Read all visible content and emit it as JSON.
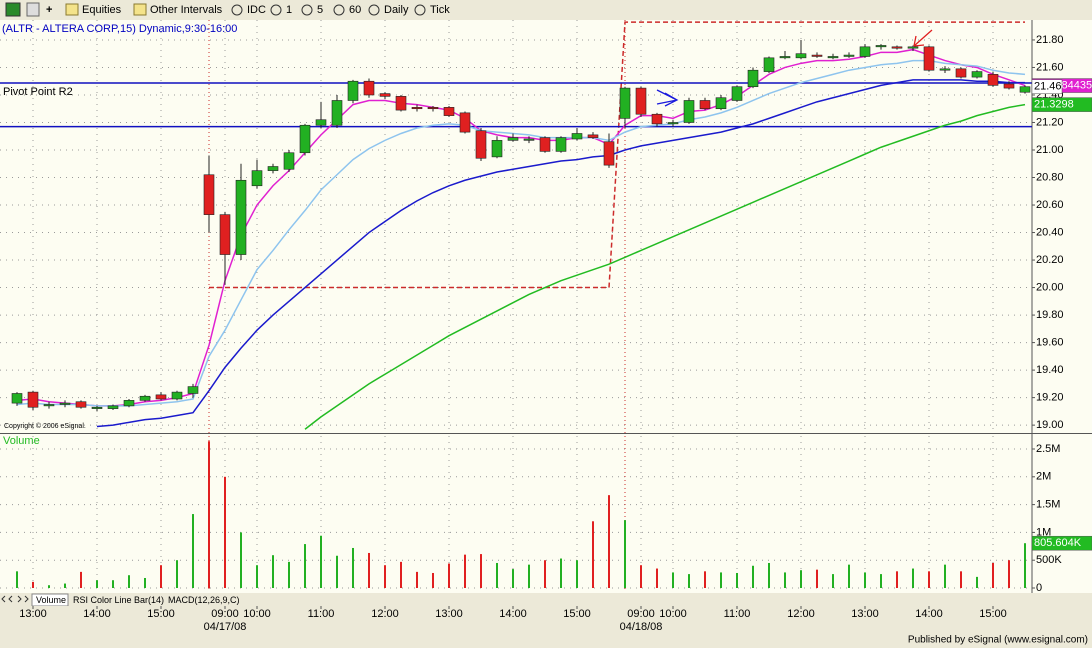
{
  "toolbar": [
    "Equities",
    "Other Intervals",
    "IDC",
    "1",
    "5",
    "60",
    "Daily",
    "Tick"
  ],
  "tabs": [
    "Volume",
    "RSI Color Line Bar(14)",
    "MACD(12,26,9,C)"
  ],
  "footer": "Published by eSignal (www.esignal.com)",
  "chart_data": {
    "type": "candlestick",
    "title": "(ALTR - ALTERA CORP,15) Dynamic,9:30-16:00",
    "copyright": "Copyright © 2006 eSignal.",
    "categories": [
      null,
      "13:00",
      null,
      null,
      null,
      "14:00",
      null,
      null,
      null,
      "15:00",
      null,
      null,
      null,
      "09:00",
      null,
      "10:00",
      null,
      null,
      null,
      "11:00",
      null,
      null,
      null,
      "12:00",
      null,
      null,
      null,
      "13:00",
      null,
      null,
      null,
      "14:00",
      null,
      null,
      null,
      "15:00",
      null,
      null,
      null,
      "09:00",
      null,
      "10:00",
      null,
      null,
      null,
      "11:00",
      null,
      null,
      null,
      "12:00",
      null,
      null,
      null,
      "13:00",
      null,
      null,
      null,
      "14:00",
      null,
      null,
      null,
      "15:00",
      null,
      null
    ],
    "dates": [
      null,
      null,
      null,
      null,
      null,
      null,
      null,
      null,
      null,
      null,
      null,
      null,
      null,
      "04/17/08",
      null,
      null,
      null,
      null,
      null,
      null,
      null,
      null,
      null,
      null,
      null,
      null,
      null,
      null,
      null,
      null,
      null,
      null,
      null,
      null,
      null,
      null,
      null,
      null,
      null,
      "04/18/08",
      null,
      null,
      null,
      null,
      null,
      null,
      null,
      null,
      null,
      null,
      null,
      null,
      null,
      null,
      null,
      null,
      null,
      null,
      null,
      null,
      null,
      null,
      null,
      null
    ],
    "open": [
      19.16,
      19.24,
      19.14,
      19.15,
      19.17,
      19.12,
      19.12,
      19.14,
      19.18,
      19.22,
      19.19,
      19.23,
      20.82,
      20.53,
      20.24,
      20.74,
      20.85,
      20.86,
      20.98,
      21.18,
      21.18,
      21.36,
      21.5,
      21.41,
      21.39,
      21.31,
      21.31,
      21.31,
      21.27,
      21.14,
      20.95,
      21.07,
      21.07,
      21.09,
      20.99,
      21.08,
      21.11,
      21.06,
      21.23,
      21.45,
      21.26,
      21.19,
      21.2,
      21.36,
      21.3,
      21.36,
      21.46,
      21.57,
      21.67,
      21.67,
      21.69,
      21.67,
      21.68,
      21.68,
      21.75,
      21.75,
      21.74,
      21.75,
      21.58,
      21.59,
      21.53,
      21.55,
      21.48,
      21.42
    ],
    "high": [
      19.24,
      19.25,
      19.17,
      19.18,
      19.18,
      19.14,
      19.15,
      19.19,
      19.22,
      19.24,
      19.25,
      19.3,
      20.96,
      20.55,
      20.9,
      20.93,
      20.9,
      21.0,
      21.19,
      21.35,
      21.4,
      21.51,
      21.52,
      21.42,
      21.4,
      21.33,
      21.32,
      21.32,
      21.28,
      21.16,
      21.1,
      21.12,
      21.1,
      21.1,
      21.1,
      21.16,
      21.13,
      21.12,
      21.46,
      21.46,
      21.27,
      21.22,
      21.38,
      21.38,
      21.4,
      21.47,
      21.6,
      21.68,
      21.72,
      21.8,
      21.71,
      21.7,
      21.71,
      21.77,
      21.77,
      21.76,
      21.76,
      21.76,
      21.61,
      21.6,
      21.58,
      21.57,
      21.5,
      21.47
    ],
    "low": [
      19.14,
      19.11,
      19.12,
      19.13,
      19.12,
      19.1,
      19.11,
      19.13,
      19.17,
      19.18,
      19.18,
      19.2,
      20.4,
      20.02,
      20.2,
      20.72,
      20.83,
      20.84,
      20.96,
      21.16,
      21.16,
      21.34,
      21.38,
      21.37,
      21.28,
      21.28,
      21.28,
      21.24,
      21.12,
      20.92,
      20.94,
      21.06,
      21.05,
      20.98,
      20.98,
      21.07,
      21.08,
      20.87,
      21.16,
      21.24,
      21.17,
      21.17,
      21.19,
      21.29,
      21.29,
      21.35,
      21.45,
      21.56,
      21.66,
      21.66,
      21.67,
      21.66,
      21.67,
      21.67,
      21.73,
      21.73,
      21.72,
      21.57,
      21.56,
      21.52,
      21.52,
      21.46,
      21.44,
      21.41
    ],
    "close": [
      19.23,
      19.13,
      19.15,
      19.16,
      19.13,
      19.13,
      19.14,
      19.18,
      19.21,
      19.19,
      19.24,
      19.28,
      20.53,
      20.24,
      20.78,
      20.85,
      20.88,
      20.98,
      21.18,
      21.22,
      21.36,
      21.5,
      21.4,
      21.39,
      21.29,
      21.3,
      21.3,
      21.25,
      21.13,
      20.94,
      21.07,
      21.09,
      21.08,
      20.99,
      21.09,
      21.12,
      21.09,
      20.89,
      21.45,
      21.26,
      21.19,
      21.2,
      21.36,
      21.3,
      21.38,
      21.46,
      21.58,
      21.67,
      21.68,
      21.7,
      21.68,
      21.68,
      21.69,
      21.75,
      21.76,
      21.74,
      21.75,
      21.58,
      21.59,
      21.53,
      21.57,
      21.47,
      21.45,
      21.46
    ],
    "last_close_label": "21.46",
    "up_color": "#22b022",
    "down_color": "#e02020",
    "ylim": [
      18.95,
      21.945
    ],
    "yticks": [
      {
        "value": 19.0,
        "label": "19.00"
      },
      {
        "value": 19.2,
        "label": "19.20"
      },
      {
        "value": 19.4,
        "label": "19.40"
      },
      {
        "value": 19.6,
        "label": "19.60"
      },
      {
        "value": 19.8,
        "label": "19.80"
      },
      {
        "value": 20.0,
        "label": "20.00"
      },
      {
        "value": 20.2,
        "label": "20.20"
      },
      {
        "value": 20.4,
        "label": "20.40"
      },
      {
        "value": 20.6,
        "label": "20.60"
      },
      {
        "value": 20.8,
        "label": "20.80"
      },
      {
        "value": 21.0,
        "label": "21.00"
      },
      {
        "value": 21.2,
        "label": "21.20"
      },
      {
        "value": 21.4,
        "label": "21.40"
      },
      {
        "value": 21.6,
        "label": "21.60"
      },
      {
        "value": 21.8,
        "label": "21.80"
      }
    ],
    "grid": true,
    "series": [
      {
        "color": "#e020d0",
        "value_label": "21.4684435",
        "values": [
          19.18,
          19.19,
          19.17,
          19.16,
          19.15,
          19.14,
          19.14,
          19.15,
          19.17,
          19.18,
          19.2,
          19.23,
          19.58,
          20.05,
          20.38,
          20.6,
          20.74,
          20.85,
          20.98,
          21.11,
          21.22,
          21.33,
          21.36,
          21.36,
          21.34,
          21.33,
          21.31,
          21.29,
          21.23,
          21.14,
          21.11,
          21.09,
          21.09,
          21.07,
          21.07,
          21.09,
          21.09,
          21.04,
          21.18,
          21.25,
          21.25,
          21.23,
          21.28,
          21.29,
          21.33,
          21.39,
          21.47,
          21.55,
          21.6,
          21.63,
          21.65,
          21.65,
          21.66,
          21.68,
          21.71,
          21.71,
          21.73,
          21.69,
          21.65,
          21.62,
          21.6,
          21.55,
          21.51,
          21.4684435
        ]
      },
      {
        "color": "#8ec4ee",
        "values": [
          19.15,
          19.16,
          19.15,
          19.15,
          19.15,
          19.14,
          19.14,
          19.14,
          19.15,
          19.16,
          19.17,
          19.19,
          19.5,
          19.69,
          19.91,
          20.13,
          20.27,
          20.42,
          20.56,
          20.71,
          20.82,
          20.93,
          21.01,
          21.07,
          21.12,
          21.16,
          21.18,
          21.19,
          21.18,
          21.14,
          21.13,
          21.12,
          21.11,
          21.09,
          21.09,
          21.09,
          21.09,
          21.07,
          21.13,
          21.17,
          21.18,
          21.19,
          21.22,
          21.24,
          21.27,
          21.31,
          21.36,
          21.41,
          21.45,
          21.49,
          21.52,
          21.55,
          21.58,
          21.6,
          21.62,
          21.63,
          21.65,
          21.65,
          21.63,
          21.62,
          21.61,
          21.58,
          21.56,
          21.55
        ]
      },
      {
        "color": "#1a1acc",
        "values": [
          null,
          null,
          null,
          null,
          null,
          18.99,
          19.0,
          19.02,
          19.04,
          19.05,
          19.07,
          19.09,
          19.25,
          19.42,
          19.56,
          19.69,
          19.8,
          19.9,
          20.0,
          20.1,
          20.2,
          20.3,
          20.4,
          20.48,
          20.56,
          20.63,
          20.69,
          20.74,
          20.78,
          20.81,
          20.84,
          20.86,
          20.88,
          20.9,
          20.92,
          20.93,
          20.95,
          20.96,
          21.0,
          21.03,
          21.05,
          21.07,
          21.09,
          21.11,
          21.13,
          21.16,
          21.19,
          21.23,
          21.27,
          21.31,
          21.35,
          21.38,
          21.41,
          21.44,
          21.47,
          21.49,
          21.51,
          21.51,
          21.51,
          21.51,
          21.5,
          21.5,
          21.49,
          21.49
        ]
      },
      {
        "color": "#22bb22",
        "value_label": "21.3298",
        "values": [
          null,
          null,
          null,
          null,
          null,
          null,
          null,
          null,
          null,
          null,
          null,
          null,
          null,
          null,
          null,
          null,
          null,
          null,
          18.97,
          19.06,
          19.14,
          19.22,
          19.3,
          19.37,
          19.44,
          19.51,
          19.58,
          19.65,
          19.71,
          19.77,
          19.83,
          19.89,
          19.95,
          20.0,
          20.05,
          20.09,
          20.13,
          20.17,
          20.22,
          20.27,
          20.32,
          20.37,
          20.42,
          20.47,
          20.52,
          20.57,
          20.62,
          20.67,
          20.72,
          20.77,
          20.82,
          20.87,
          20.92,
          20.97,
          21.02,
          21.06,
          21.1,
          21.14,
          21.18,
          21.21,
          21.25,
          21.28,
          21.31,
          21.3298
        ]
      }
    ],
    "levels": {
      "color": "#cc2a2a",
      "values": [
        null,
        null,
        null,
        null,
        null,
        null,
        null,
        null,
        null,
        null,
        null,
        null,
        20.0,
        20.0,
        20.0,
        20.0,
        20.0,
        20.0,
        20.0,
        20.0,
        20.0,
        20.0,
        20.0,
        20.0,
        20.0,
        20.0,
        20.0,
        20.0,
        20.0,
        20.0,
        20.0,
        20.0,
        20.0,
        20.0,
        20.0,
        20.0,
        20.0,
        20.0,
        21.93,
        21.93,
        21.93,
        21.93,
        21.93,
        21.93,
        21.93,
        21.93,
        21.93,
        21.93,
        21.93,
        21.93,
        21.93,
        21.93,
        21.93,
        21.93,
        21.93,
        21.93,
        21.93,
        21.93,
        21.93,
        21.93,
        21.93,
        21.93,
        21.93,
        21.93
      ]
    },
    "horizontal_lines": [
      {
        "value": 21.487,
        "label": "Pivot Point R2",
        "color": "#1010c0"
      },
      {
        "value": 21.17,
        "color": "#1010c0"
      }
    ],
    "volume": {
      "title": "Volume",
      "title_color": "#22bb22",
      "values": [
        300000,
        110000,
        50000,
        80000,
        290000,
        140000,
        140000,
        230000,
        180000,
        410000,
        500000,
        1330000,
        2640000,
        2000000,
        1000000,
        410000,
        590000,
        470000,
        790000,
        940000,
        580000,
        720000,
        630000,
        410000,
        470000,
        290000,
        270000,
        440000,
        600000,
        610000,
        450000,
        340000,
        420000,
        500000,
        530000,
        500000,
        1200000,
        1670000,
        1220000,
        410000,
        350000,
        280000,
        250000,
        300000,
        280000,
        270000,
        400000,
        450000,
        280000,
        320000,
        330000,
        250000,
        420000,
        280000,
        250000,
        300000,
        350000,
        300000,
        420000,
        300000,
        200000,
        450000,
        500000,
        805604
      ],
      "last_label": "805.604K",
      "ylim": [
        -72000,
        2734000
      ],
      "yticks": [
        0,
        {
          "value": 500000,
          "label": "500K"
        },
        {
          "value": 1000000,
          "label": "1M"
        },
        {
          "value": 1500000,
          "label": "1.5M"
        },
        {
          "value": 2000000,
          "label": "2M"
        },
        {
          "value": 2500000,
          "label": "2.5M"
        }
      ]
    }
  }
}
